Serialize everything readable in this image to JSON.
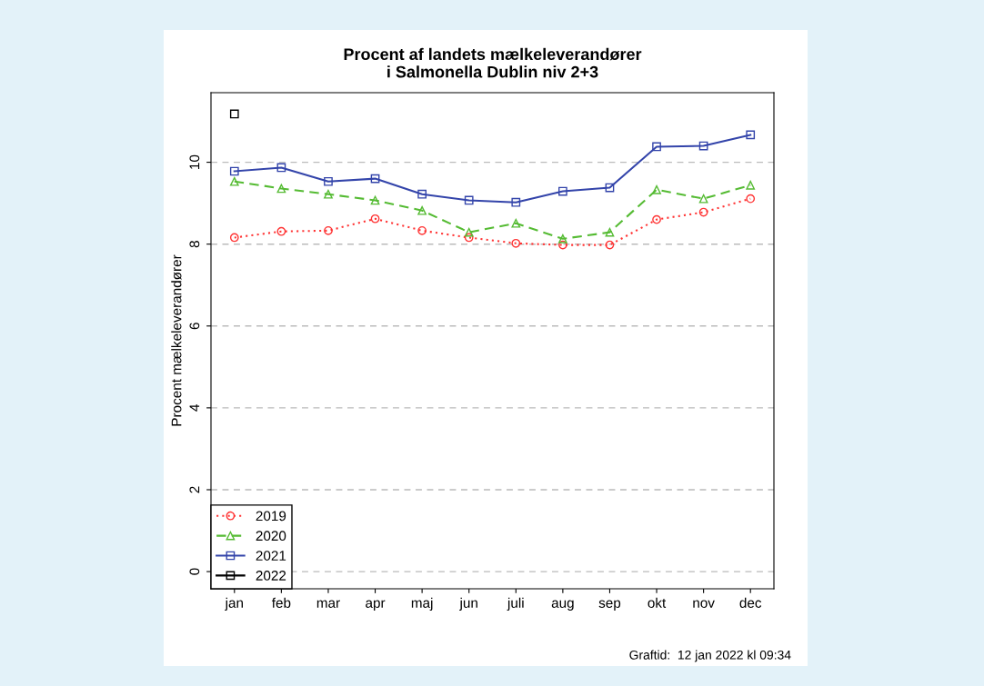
{
  "chart_data": {
    "type": "line",
    "title": "Procent af landets mælkeleverandører\ni Salmonella Dublin niv 2+3",
    "ylabel": "Procent mælkeleverandører",
    "categories": [
      "jan",
      "feb",
      "mar",
      "apr",
      "maj",
      "jun",
      "juli",
      "aug",
      "sep",
      "okt",
      "nov",
      "dec"
    ],
    "series": [
      {
        "name": "2019",
        "color": "#ff3333",
        "marker": "circle",
        "line_style": "dotted",
        "values": [
          8.16,
          8.31,
          8.33,
          8.62,
          8.33,
          8.16,
          8.02,
          7.98,
          7.98,
          8.6,
          8.78,
          9.11
        ]
      },
      {
        "name": "2020",
        "color": "#55bb33",
        "marker": "triangle",
        "line_style": "dashed",
        "values": [
          9.53,
          9.36,
          9.22,
          9.07,
          8.82,
          8.29,
          8.51,
          8.13,
          8.29,
          9.33,
          9.11,
          9.44
        ]
      },
      {
        "name": "2021",
        "color": "#3344aa",
        "marker": "square",
        "line_style": "solid",
        "values": [
          9.78,
          9.87,
          9.53,
          9.6,
          9.22,
          9.07,
          9.02,
          9.29,
          9.38,
          10.38,
          10.4,
          10.67
        ]
      },
      {
        "name": "2022",
        "color": "#000000",
        "marker": "square",
        "line_style": "solid",
        "values": [
          11.18,
          null,
          null,
          null,
          null,
          null,
          null,
          null,
          null,
          null,
          null,
          null
        ]
      }
    ],
    "ylim": [
      -0.42,
      11.7
    ],
    "yticks": [
      0,
      2,
      4,
      6,
      8,
      10
    ],
    "grid": "y",
    "legend": "bottom left",
    "annotations": [
      "Graftid:  12 jan 2022 kl 09:34"
    ]
  }
}
